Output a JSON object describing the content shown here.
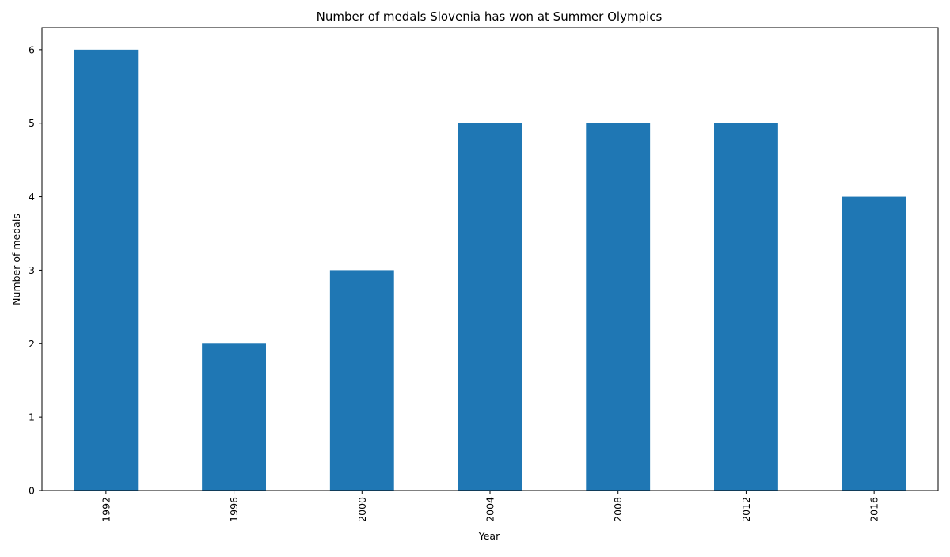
{
  "chart_data": {
    "type": "bar",
    "title": "Number of medals Slovenia has won at Summer Olympics",
    "xlabel": "Year",
    "ylabel": "Number of medals",
    "categories": [
      "1992",
      "1996",
      "2000",
      "2004",
      "2008",
      "2012",
      "2016"
    ],
    "values": [
      6,
      2,
      3,
      5,
      5,
      5,
      4
    ],
    "ylim": [
      0,
      6.3
    ],
    "yticks": [
      0,
      1,
      2,
      3,
      4,
      5,
      6
    ],
    "grid": false,
    "legend": "none",
    "bar_color": "#1f77b4"
  }
}
